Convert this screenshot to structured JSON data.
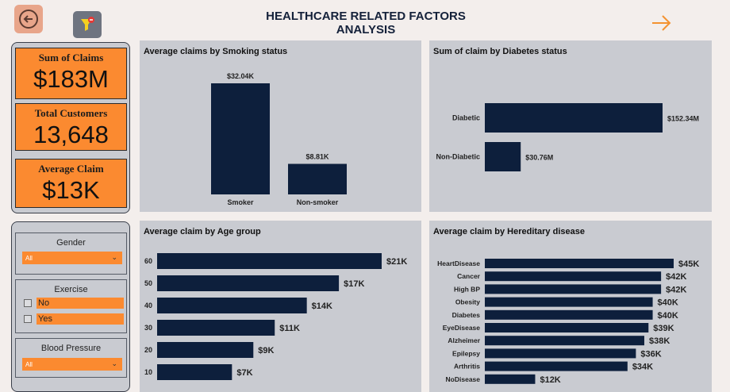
{
  "header": {
    "title": "HEALTHCARE RELATED FACTORS ANALYSIS"
  },
  "kpis": [
    {
      "label": "Sum of Claims",
      "value": "$183M"
    },
    {
      "label": "Total Customers",
      "value": "13,648"
    },
    {
      "label": "Average Claim",
      "value": "$13K"
    }
  ],
  "slicers": {
    "gender": {
      "title": "Gender",
      "selected": "All"
    },
    "exercise": {
      "title": "Exercise",
      "options": [
        "No",
        "Yes"
      ]
    },
    "blood_pressure": {
      "title": "Blood Pressure",
      "selected": "All"
    }
  },
  "colors": {
    "accent": "#fb8a30",
    "bar": "#0d1f3c",
    "panel": "#c9cbd1",
    "background": "#f3eeec"
  },
  "icons": [
    "back-arrow-icon",
    "filter-icon",
    "next-arrow-icon",
    "chevron-down-icon"
  ],
  "chart_data": [
    {
      "type": "bar",
      "title": "Average claims by Smoking status",
      "categories": [
        "Smoker",
        "Non-smoker"
      ],
      "values": [
        32.04,
        8.81
      ],
      "labels": [
        "$32.04K",
        "$8.81K"
      ],
      "ylim": [
        0,
        32.04
      ]
    },
    {
      "type": "bar",
      "orientation": "horizontal",
      "title": "Sum of claim by Diabetes status",
      "categories": [
        "Diabetic",
        "Non-Diabetic"
      ],
      "values": [
        152.34,
        30.76
      ],
      "labels": [
        "$152.34M",
        "$30.76M"
      ],
      "xlim": [
        0,
        152.34
      ]
    },
    {
      "type": "bar",
      "orientation": "horizontal",
      "title": "Average claim by Age group",
      "categories": [
        "60",
        "50",
        "40",
        "30",
        "20",
        "10"
      ],
      "values": [
        21,
        17,
        14,
        11,
        9,
        7
      ],
      "labels": [
        "$21K",
        "$17K",
        "$14K",
        "$11K",
        "$9K",
        "$7K"
      ],
      "xlim": [
        0,
        21
      ]
    },
    {
      "type": "bar",
      "orientation": "horizontal",
      "title": "Average claim by Hereditary disease",
      "categories": [
        "HeartDisease",
        "Cancer",
        "High BP",
        "Obesity",
        "Diabetes",
        "EyeDisease",
        "Alzheimer",
        "Epilepsy",
        "Arthritis",
        "NoDisease"
      ],
      "values": [
        45,
        42,
        42,
        40,
        40,
        39,
        38,
        36,
        34,
        12
      ],
      "labels": [
        "$45K",
        "$42K",
        "$42K",
        "$40K",
        "$40K",
        "$39K",
        "$38K",
        "$36K",
        "$34K",
        "$12K"
      ],
      "xlim": [
        0,
        45
      ]
    }
  ]
}
